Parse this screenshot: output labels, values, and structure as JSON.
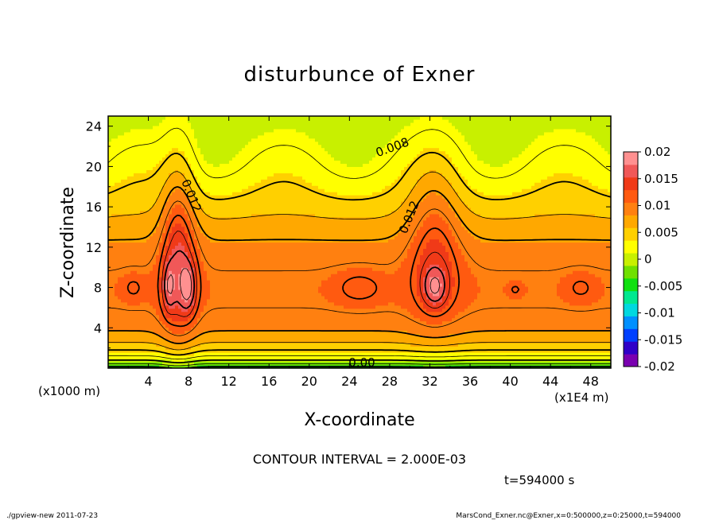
{
  "chart_data": {
    "type": "heatmap",
    "title": "disturbunce of Exner",
    "xlabel": "X-coordinate",
    "ylabel": "Z-coordinate",
    "x_unit_left": "(x1000 m)",
    "x_unit_right": "(x1E4 m)",
    "xlim": [
      0,
      50
    ],
    "ylim": [
      0,
      25
    ],
    "x_ticks": [
      4,
      8,
      12,
      16,
      20,
      24,
      28,
      32,
      36,
      40,
      44,
      48
    ],
    "y_ticks": [
      4,
      8,
      12,
      16,
      20,
      24
    ],
    "contour_interval_text": "CONTOUR INTERVAL = 2.000E-03",
    "contour_labels": [
      "0.012",
      "0.008",
      "0.012",
      "0.00"
    ],
    "colorbar": {
      "ticks": [
        "0.02",
        "0.015",
        "0.01",
        "0.005",
        "0",
        "-0.005",
        "-0.01",
        "-0.015",
        "-0.02"
      ],
      "range": [
        -0.02,
        0.02
      ],
      "colors": [
        "#7a00b0",
        "#3000c8",
        "#0040ff",
        "#0090ff",
        "#00d8e0",
        "#00e890",
        "#10e010",
        "#70e000",
        "#c8f000",
        "#ffff00",
        "#ffd000",
        "#ffa800",
        "#ff8010",
        "#ff5a10",
        "#f03a18",
        "#f05858",
        "#ff9090"
      ]
    },
    "peaks": [
      {
        "x": 6,
        "z": 8,
        "value": 0.016
      },
      {
        "x": 8,
        "z": 8,
        "value": 0.018
      },
      {
        "x": 25,
        "z": 8,
        "value": 0.015
      },
      {
        "x": 32.5,
        "z": 8,
        "value": 0.019
      },
      {
        "x": 40.5,
        "z": 7.8,
        "value": 0.015
      },
      {
        "x": 47,
        "z": 8,
        "value": 0.015
      },
      {
        "x": 2.5,
        "z": 8,
        "value": 0.015
      }
    ]
  },
  "time_label": "t=594000 s",
  "footer": {
    "left": "./gpview-new   2011-07-23",
    "right": "MarsCond_Exner.nc@Exner,x=0:500000,z=0:25000,t=594000"
  }
}
